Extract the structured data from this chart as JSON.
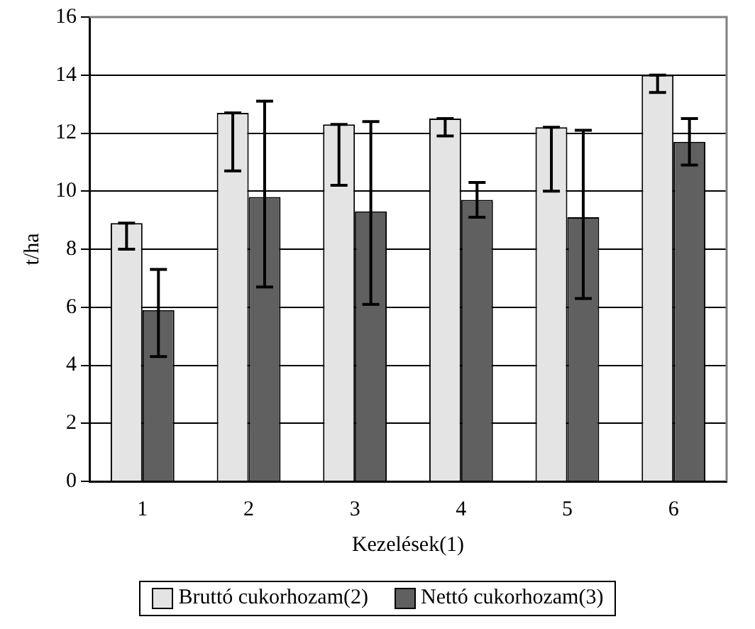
{
  "chart_data": {
    "type": "bar",
    "xlabel": "Kezelések(1)",
    "ylabel": "t/ha",
    "categories": [
      "1",
      "2",
      "3",
      "4",
      "5",
      "6"
    ],
    "series": [
      {
        "name": "Bruttó cukorhozam(2)",
        "color": "#e4e4e4",
        "values": [
          8.9,
          12.7,
          12.3,
          12.5,
          12.2,
          14.0
        ],
        "errors": [
          [
            8.0,
            8.9
          ],
          [
            10.7,
            12.7
          ],
          [
            10.2,
            12.3
          ],
          [
            11.9,
            12.5
          ],
          [
            10.0,
            12.2
          ],
          [
            13.4,
            14.0
          ]
        ]
      },
      {
        "name": "Nettó cukorhozam(3)",
        "color": "#606060",
        "values": [
          5.9,
          9.8,
          9.3,
          9.7,
          9.1,
          11.7
        ],
        "errors": [
          [
            4.3,
            7.3
          ],
          [
            6.7,
            13.1
          ],
          [
            6.1,
            12.4
          ],
          [
            9.1,
            10.3
          ],
          [
            6.3,
            12.1
          ],
          [
            10.9,
            12.5
          ]
        ]
      }
    ],
    "ylim": [
      0,
      16
    ],
    "yticks": [
      0,
      2,
      4,
      6,
      8,
      10,
      12,
      14,
      16
    ],
    "grid": "y",
    "legend": "bottom"
  }
}
